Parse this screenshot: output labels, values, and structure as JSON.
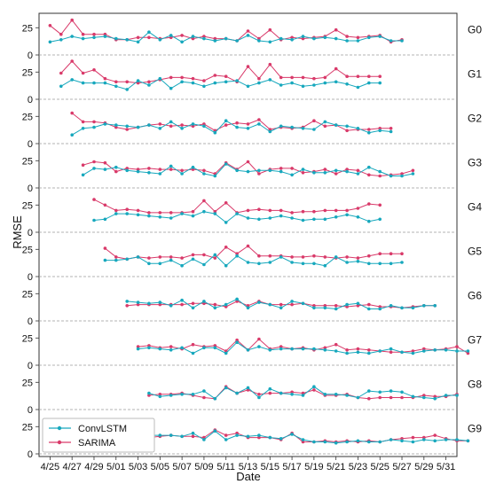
{
  "chart_data": {
    "type": "line",
    "xlabel": "Date",
    "ylabel": "RMSE",
    "ylim": [
      0,
      35
    ],
    "yticks": [
      0,
      25
    ],
    "x_range": [
      "4/24",
      "6/01"
    ],
    "x_ticks": [
      "4/25",
      "4/27",
      "4/29",
      "5/01",
      "5/03",
      "5/05",
      "5/07",
      "5/09",
      "5/11",
      "5/13",
      "5/15",
      "5/17",
      "5/19",
      "5/21",
      "5/23",
      "5/25",
      "5/27",
      "5/29",
      "5/31"
    ],
    "grid": "horizontal dashed at 0",
    "legend": {
      "position": "bottom-left",
      "entries": [
        {
          "name": "ConvLSTM",
          "color": "#17a8bd"
        },
        {
          "name": "SARIMA",
          "color": "#d93a6a"
        }
      ]
    },
    "series_colors": {
      "ConvLSTM": "#17a8bd",
      "SARIMA": "#d93a6a"
    },
    "panels": [
      {
        "label": "G0",
        "start": "4/25",
        "ConvLSTM": [
          12,
          14,
          17,
          15,
          16,
          17,
          15,
          14,
          12,
          21,
          14,
          18,
          12,
          17,
          15,
          13,
          15,
          13,
          18,
          13,
          12,
          15,
          14,
          17,
          15,
          16,
          15,
          13,
          13,
          16,
          17,
          13,
          13
        ],
        "SARIMA": [
          27,
          19,
          32,
          19,
          19,
          19,
          14,
          14,
          16,
          16,
          15,
          16,
          18,
          15,
          17,
          15,
          15,
          13,
          22,
          15,
          23,
          14,
          16,
          15,
          16,
          17,
          23,
          17,
          16,
          17,
          18,
          12,
          14
        ]
      },
      {
        "label": "G1",
        "start": "4/26",
        "ConvLSTM": [
          12,
          18,
          15,
          15,
          15,
          12,
          9,
          17,
          13,
          19,
          10,
          16,
          15,
          12,
          15,
          16,
          17,
          12,
          15,
          18,
          13,
          15,
          12,
          13,
          15,
          16,
          14,
          11,
          15,
          15
        ],
        "SARIMA": [
          24,
          35,
          24,
          27,
          19,
          16,
          16,
          15,
          16,
          18,
          20,
          20,
          19,
          17,
          22,
          21,
          16,
          30,
          19,
          32,
          20,
          20,
          20,
          19,
          20,
          28,
          21,
          21,
          21,
          21
        ]
      },
      {
        "label": "G2",
        "start": "4/27",
        "ConvLSTM": [
          8,
          14,
          15,
          18,
          17,
          16,
          15,
          17,
          14,
          20,
          14,
          18,
          16,
          10,
          21,
          15,
          14,
          18,
          11,
          16,
          15,
          14,
          13,
          20,
          17,
          16,
          14,
          10,
          12,
          11
        ],
        "SARIMA": [
          28,
          20,
          20,
          19,
          15,
          13,
          15,
          17,
          18,
          16,
          17,
          16,
          18,
          12,
          17,
          19,
          18,
          22,
          13,
          15,
          14,
          15,
          21,
          16,
          17,
          12,
          13,
          13,
          14,
          14
        ]
      },
      {
        "label": "G3",
        "start": "4/28",
        "ConvLSTM": [
          12,
          18,
          17,
          19,
          16,
          15,
          14,
          13,
          20,
          13,
          19,
          13,
          11,
          22,
          16,
          15,
          16,
          16,
          15,
          12,
          17,
          14,
          14,
          16,
          15,
          13,
          19,
          15,
          11,
          11,
          13
        ],
        "SARIMA": [
          21,
          24,
          23,
          15,
          18,
          17,
          18,
          17,
          17,
          16,
          17,
          16,
          13,
          23,
          17,
          24,
          13,
          17,
          18,
          18,
          14,
          15,
          17,
          13,
          17,
          16,
          12,
          11,
          12,
          13,
          16
        ]
      },
      {
        "label": "G4",
        "start": "4/29",
        "ConvLSTM": [
          11,
          12,
          17,
          17,
          16,
          15,
          14,
          13,
          17,
          15,
          19,
          17,
          9,
          17,
          13,
          12,
          13,
          15,
          13,
          11,
          12,
          12,
          14,
          16,
          14,
          10,
          12
        ],
        "SARIMA": [
          30,
          25,
          20,
          21,
          20,
          18,
          18,
          18,
          18,
          19,
          29,
          19,
          27,
          18,
          20,
          21,
          20,
          20,
          18,
          19,
          19,
          20,
          20,
          20,
          22,
          26,
          25
        ]
      },
      {
        "label": "G5",
        "start": "4/30",
        "ConvLSTM": [
          15,
          15,
          16,
          18,
          12,
          12,
          15,
          10,
          16,
          11,
          20,
          10,
          19,
          13,
          12,
          13,
          18,
          13,
          12,
          12,
          10,
          18,
          13,
          14,
          12,
          12,
          12,
          13
        ],
        "SARIMA": [
          26,
          18,
          16,
          18,
          17,
          18,
          18,
          17,
          20,
          20,
          17,
          27,
          21,
          28,
          19,
          19,
          19,
          18,
          18,
          19,
          18,
          17,
          18,
          17,
          19,
          21,
          21,
          21
        ]
      },
      {
        "label": "G6",
        "start": "5/02",
        "ConvLSTM": [
          18,
          17,
          16,
          17,
          14,
          19,
          12,
          18,
          12,
          15,
          20,
          12,
          17,
          15,
          12,
          18,
          16,
          12,
          12,
          11,
          15,
          16,
          11,
          11,
          14,
          12,
          12,
          14,
          14
        ],
        "SARIMA": [
          14,
          15,
          15,
          15,
          15,
          15,
          16,
          16,
          15,
          13,
          18,
          14,
          18,
          15,
          15,
          15,
          16,
          14,
          14,
          14,
          13,
          14,
          15,
          13,
          13,
          12,
          13,
          14,
          14
        ]
      },
      {
        "label": "G7",
        "start": "5/03",
        "ConvLSTM": [
          15,
          16,
          15,
          14,
          16,
          11,
          16,
          16,
          11,
          21,
          14,
          17,
          14,
          15,
          15,
          15,
          15,
          14,
          13,
          11,
          12,
          11,
          13,
          15,
          12,
          11,
          13,
          14,
          14,
          13,
          13
        ],
        "SARIMA": [
          17,
          18,
          16,
          17,
          15,
          19,
          17,
          18,
          13,
          23,
          14,
          24,
          15,
          17,
          15,
          16,
          14,
          16,
          19,
          14,
          15,
          14,
          13,
          12,
          12,
          13,
          15,
          14,
          15,
          17,
          11
        ]
      },
      {
        "label": "G8",
        "start": "5/04",
        "ConvLSTM": [
          15,
          12,
          13,
          14,
          14,
          17,
          10,
          20,
          15,
          20,
          11,
          19,
          15,
          14,
          13,
          21,
          14,
          14,
          13,
          11,
          17,
          16,
          17,
          16,
          12,
          11,
          10,
          13,
          13
        ],
        "SARIMA": [
          13,
          14,
          14,
          15,
          13,
          11,
          10,
          21,
          15,
          18,
          14,
          15,
          15,
          16,
          15,
          18,
          13,
          13,
          14,
          11,
          10,
          11,
          11,
          11,
          11,
          13,
          12,
          12,
          14
        ]
      },
      {
        "label": "G9",
        "start": "5/04",
        "ConvLSTM": [
          17,
          17,
          17,
          16,
          19,
          13,
          21,
          13,
          17,
          16,
          17,
          15,
          14,
          18,
          13,
          11,
          11,
          10,
          11,
          12,
          11,
          11,
          13,
          12,
          11,
          13,
          12,
          13,
          13,
          12
        ],
        "SARIMA": [
          15,
          16,
          17,
          16,
          16,
          15,
          22,
          17,
          19,
          15,
          15,
          15,
          13,
          19,
          11,
          11,
          12,
          11,
          12,
          11,
          12,
          11,
          13,
          14,
          15,
          15,
          17,
          14,
          12,
          12
        ]
      }
    ]
  }
}
